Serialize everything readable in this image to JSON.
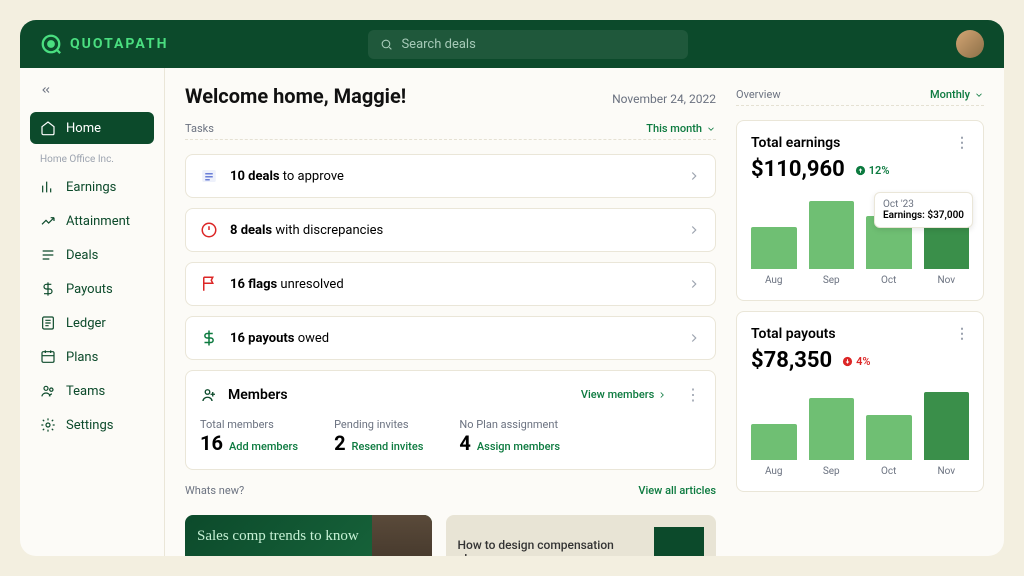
{
  "brand": "QUOTAPATH",
  "search": {
    "placeholder": "Search deals"
  },
  "sidebar": {
    "section_label": "Home Office Inc.",
    "items": [
      {
        "label": "Home",
        "icon": "home",
        "active": true
      },
      {
        "label": "Earnings",
        "icon": "earnings"
      },
      {
        "label": "Attainment",
        "icon": "attainment"
      },
      {
        "label": "Deals",
        "icon": "deals"
      },
      {
        "label": "Payouts",
        "icon": "payouts"
      },
      {
        "label": "Ledger",
        "icon": "ledger"
      },
      {
        "label": "Plans",
        "icon": "plans"
      },
      {
        "label": "Teams",
        "icon": "teams"
      },
      {
        "label": "Settings",
        "icon": "settings"
      }
    ]
  },
  "header": {
    "welcome": "Welcome home, Maggie!",
    "date": "November 24, 2022"
  },
  "tasks": {
    "title": "Tasks",
    "filter": "This month",
    "items": [
      {
        "bold": "10 deals",
        "rest": " to approve",
        "icon": "list",
        "color": "#6b7fd7"
      },
      {
        "bold": "8 deals",
        "rest": " with discrepancies",
        "icon": "alert",
        "color": "#dc2626"
      },
      {
        "bold": "16 flags",
        "rest": " unresolved",
        "icon": "flag",
        "color": "#dc2626"
      },
      {
        "bold": "16 payouts",
        "rest": " owed",
        "icon": "dollar",
        "color": "#0c7a3f"
      }
    ]
  },
  "members": {
    "title": "Members",
    "view_link": "View members",
    "stats": [
      {
        "label": "Total members",
        "value": "16",
        "action": "Add members"
      },
      {
        "label": "Pending invites",
        "value": "2",
        "action": "Resend invites"
      },
      {
        "label": "No Plan assignment",
        "value": "4",
        "action": "Assign members"
      }
    ]
  },
  "whats_new": {
    "title": "Whats new?",
    "view_all": "View all articles",
    "articles": [
      {
        "title": "Sales comp trends to know"
      },
      {
        "title": "How to design compensation plans"
      }
    ]
  },
  "overview": {
    "title": "Overview",
    "filter": "Monthly",
    "earnings": {
      "title": "Total earnings",
      "amount": "$110,960",
      "delta": "12%",
      "delta_dir": "up",
      "chart": {
        "type": "bar",
        "categories": [
          "Aug",
          "Sep",
          "Oct",
          "Nov"
        ],
        "values": [
          55,
          90,
          70,
          80
        ],
        "colors": [
          "#6fbf73",
          "#6fbf73",
          "#6fbf73",
          "#3a8f4a"
        ],
        "tooltip": {
          "label": "Oct '23",
          "value": "Earnings: $37,000"
        }
      }
    },
    "payouts": {
      "title": "Total payouts",
      "amount": "$78,350",
      "delta": "4%",
      "delta_dir": "down",
      "chart": {
        "type": "bar",
        "categories": [
          "Aug",
          "Sep",
          "Oct",
          "Nov"
        ],
        "values": [
          40,
          68,
          50,
          75
        ],
        "colors": [
          "#6fbf73",
          "#6fbf73",
          "#6fbf73",
          "#3a8f4a"
        ]
      }
    }
  }
}
